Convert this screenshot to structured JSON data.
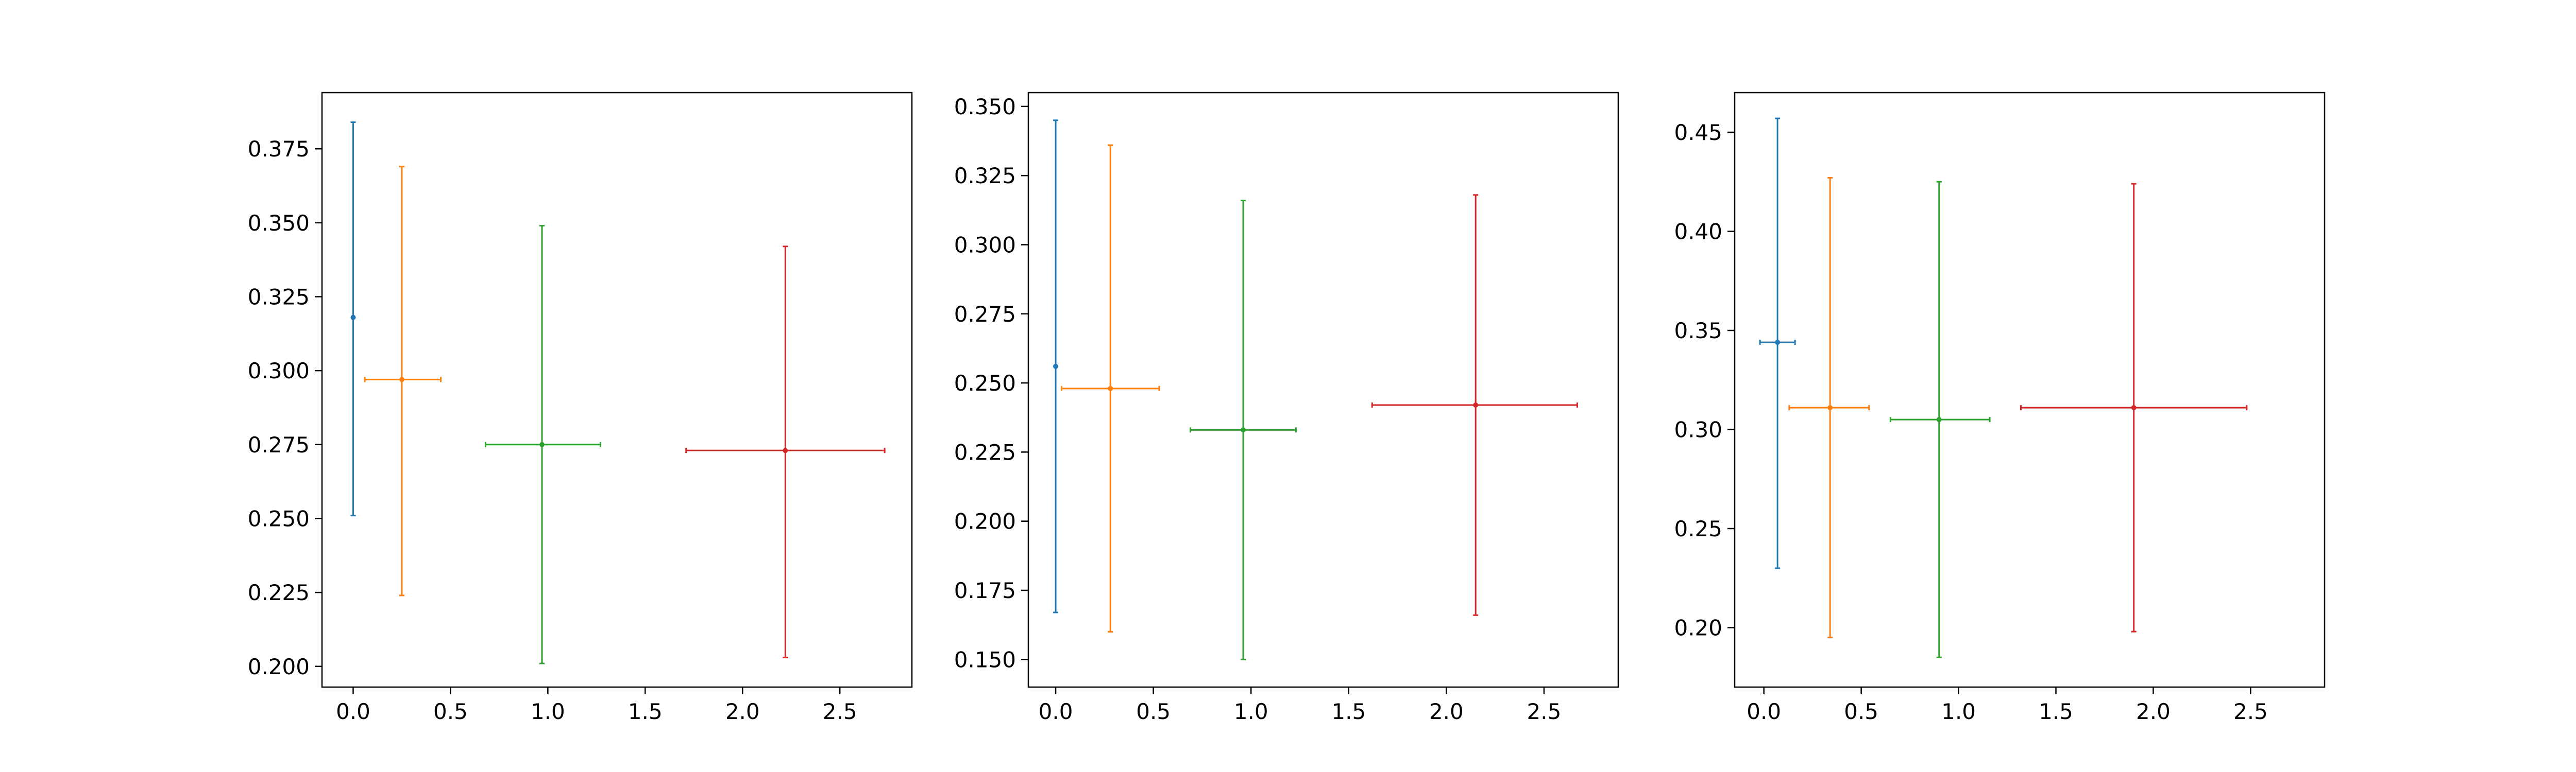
{
  "chart_data": [
    {
      "type": "errorbar",
      "xlim": [
        -0.16,
        2.87
      ],
      "ylim": [
        0.193,
        0.394
      ],
      "xticks": [
        {
          "value": 0.0,
          "label": "0.0"
        },
        {
          "value": 0.5,
          "label": "0.5"
        },
        {
          "value": 1.0,
          "label": "1.0"
        },
        {
          "value": 1.5,
          "label": "1.5"
        },
        {
          "value": 2.0,
          "label": "2.0"
        },
        {
          "value": 2.5,
          "label": "2.5"
        }
      ],
      "yticks": [
        {
          "value": 0.2,
          "label": "0.200"
        },
        {
          "value": 0.225,
          "label": "0.225"
        },
        {
          "value": 0.25,
          "label": "0.250"
        },
        {
          "value": 0.275,
          "label": "0.275"
        },
        {
          "value": 0.3,
          "label": "0.300"
        },
        {
          "value": 0.325,
          "label": "0.325"
        },
        {
          "value": 0.35,
          "label": "0.350"
        },
        {
          "value": 0.375,
          "label": "0.375"
        }
      ],
      "points": [
        {
          "x": 0.0,
          "y": 0.318,
          "x_low": 0.0,
          "x_high": 0.0,
          "y_low": 0.251,
          "y_high": 0.384,
          "color": "#1f77b4"
        },
        {
          "x": 0.25,
          "y": 0.297,
          "x_low": 0.06,
          "x_high": 0.45,
          "y_low": 0.224,
          "y_high": 0.369,
          "color": "#ff7f0e"
        },
        {
          "x": 0.97,
          "y": 0.275,
          "x_low": 0.68,
          "x_high": 1.27,
          "y_low": 0.201,
          "y_high": 0.349,
          "color": "#2ca02c"
        },
        {
          "x": 2.22,
          "y": 0.273,
          "x_low": 1.71,
          "x_high": 2.73,
          "y_low": 0.203,
          "y_high": 0.342,
          "color": "#d62728"
        }
      ]
    },
    {
      "type": "errorbar",
      "xlim": [
        -0.14,
        2.88
      ],
      "ylim": [
        0.14,
        0.355
      ],
      "xticks": [
        {
          "value": 0.0,
          "label": "0.0"
        },
        {
          "value": 0.5,
          "label": "0.5"
        },
        {
          "value": 1.0,
          "label": "1.0"
        },
        {
          "value": 1.5,
          "label": "1.5"
        },
        {
          "value": 2.0,
          "label": "2.0"
        },
        {
          "value": 2.5,
          "label": "2.5"
        }
      ],
      "yticks": [
        {
          "value": 0.15,
          "label": "0.150"
        },
        {
          "value": 0.175,
          "label": "0.175"
        },
        {
          "value": 0.2,
          "label": "0.200"
        },
        {
          "value": 0.225,
          "label": "0.225"
        },
        {
          "value": 0.25,
          "label": "0.250"
        },
        {
          "value": 0.275,
          "label": "0.275"
        },
        {
          "value": 0.3,
          "label": "0.300"
        },
        {
          "value": 0.325,
          "label": "0.325"
        },
        {
          "value": 0.35,
          "label": "0.350"
        }
      ],
      "points": [
        {
          "x": 0.0,
          "y": 0.256,
          "x_low": 0.0,
          "x_high": 0.0,
          "y_low": 0.167,
          "y_high": 0.345,
          "color": "#1f77b4"
        },
        {
          "x": 0.28,
          "y": 0.248,
          "x_low": 0.03,
          "x_high": 0.53,
          "y_low": 0.16,
          "y_high": 0.336,
          "color": "#ff7f0e"
        },
        {
          "x": 0.96,
          "y": 0.233,
          "x_low": 0.69,
          "x_high": 1.23,
          "y_low": 0.15,
          "y_high": 0.316,
          "color": "#2ca02c"
        },
        {
          "x": 2.15,
          "y": 0.242,
          "x_low": 1.62,
          "x_high": 2.67,
          "y_low": 0.166,
          "y_high": 0.318,
          "color": "#d62728"
        }
      ]
    },
    {
      "type": "errorbar",
      "xlim": [
        -0.15,
        2.88
      ],
      "ylim": [
        0.17,
        0.47
      ],
      "xticks": [
        {
          "value": 0.0,
          "label": "0.0"
        },
        {
          "value": 0.5,
          "label": "0.5"
        },
        {
          "value": 1.0,
          "label": "1.0"
        },
        {
          "value": 1.5,
          "label": "1.5"
        },
        {
          "value": 2.0,
          "label": "2.0"
        },
        {
          "value": 2.5,
          "label": "2.5"
        }
      ],
      "yticks": [
        {
          "value": 0.2,
          "label": "0.20"
        },
        {
          "value": 0.25,
          "label": "0.25"
        },
        {
          "value": 0.3,
          "label": "0.30"
        },
        {
          "value": 0.35,
          "label": "0.35"
        },
        {
          "value": 0.4,
          "label": "0.40"
        },
        {
          "value": 0.45,
          "label": "0.45"
        }
      ],
      "points": [
        {
          "x": 0.07,
          "y": 0.344,
          "x_low": -0.02,
          "x_high": 0.16,
          "y_low": 0.23,
          "y_high": 0.457,
          "color": "#1f77b4"
        },
        {
          "x": 0.34,
          "y": 0.311,
          "x_low": 0.13,
          "x_high": 0.54,
          "y_low": 0.195,
          "y_high": 0.427,
          "color": "#ff7f0e"
        },
        {
          "x": 0.9,
          "y": 0.305,
          "x_low": 0.65,
          "x_high": 1.16,
          "y_low": 0.185,
          "y_high": 0.425,
          "color": "#2ca02c"
        },
        {
          "x": 1.9,
          "y": 0.311,
          "x_low": 1.32,
          "x_high": 2.48,
          "y_low": 0.198,
          "y_high": 0.424,
          "color": "#d62728"
        }
      ]
    }
  ]
}
